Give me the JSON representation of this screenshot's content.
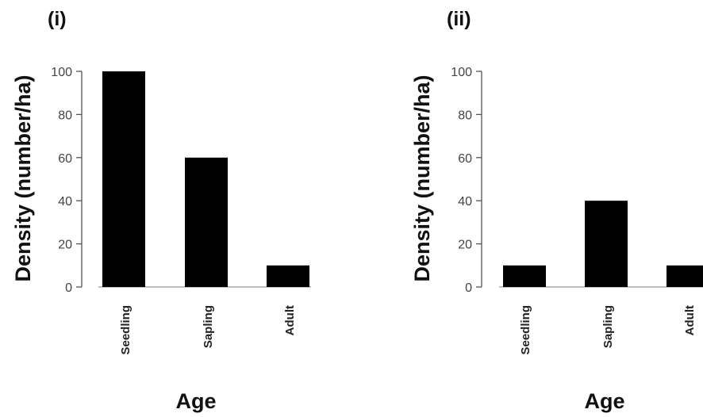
{
  "chart_data": [
    {
      "type": "bar",
      "panel_label": "(i)",
      "categories": [
        "Seedling",
        "Sapling",
        "Adult"
      ],
      "values": [
        100,
        60,
        10
      ],
      "xlabel": "Age",
      "ylabel": "Density (number/ha)",
      "ylim": [
        0,
        100
      ],
      "yticks": [
        "0",
        "20",
        "40",
        "60",
        "80",
        "100"
      ],
      "bar_color": "#000000",
      "grid": false
    },
    {
      "type": "bar",
      "panel_label": "(ii)",
      "categories": [
        "Seedling",
        "Sapling",
        "Adult"
      ],
      "values": [
        10,
        40,
        10
      ],
      "xlabel": "Age",
      "ylabel": "Density (number/ha)",
      "ylim": [
        0,
        100
      ],
      "yticks": [
        "0",
        "20",
        "40",
        "60",
        "80",
        "100"
      ],
      "bar_color": "#000000",
      "grid": false
    }
  ]
}
